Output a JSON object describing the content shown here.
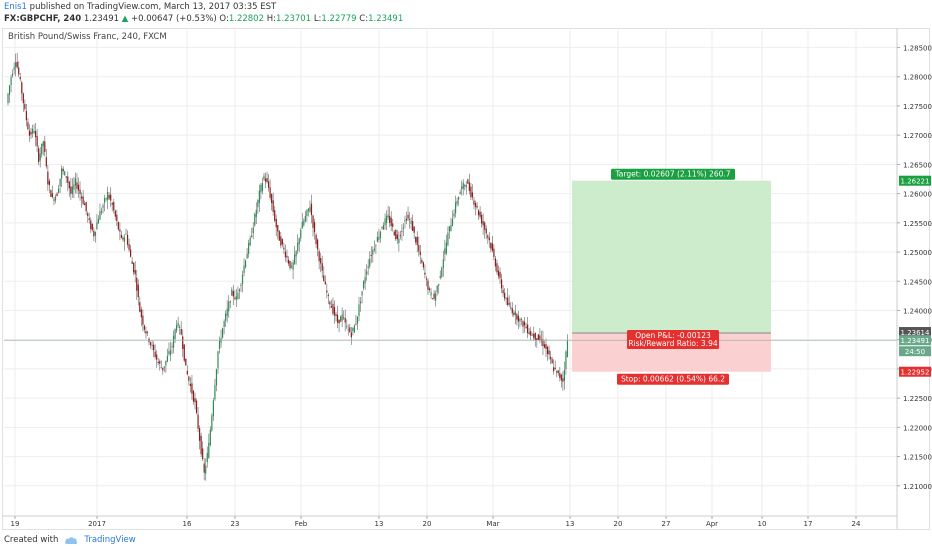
{
  "header": {
    "author": "Enis1",
    "published": "published on TradingView.com, March 13, 2017 03:35 EST",
    "symbol": "FX:GBPCHF, 240",
    "last": "1.23491",
    "change": "+0.00647 (+0.53%)",
    "o_label": "O:",
    "o": "1.22802",
    "h_label": "H:",
    "h": "1.23701",
    "l_label": "L:",
    "l": "1.22779",
    "c_label": "C:",
    "c": "1.23491"
  },
  "subtitle": "British Pound/Swiss Franc, 240, FXCM",
  "footer": {
    "created": "Created with",
    "brand": "TradingView",
    "icon": "tradingview-cloud-icon"
  },
  "colors": {
    "up": "#2e8b57",
    "down": "#8b1a1a",
    "target_fill": "#cdeccb",
    "stop_fill": "#fbd0d0",
    "target_label": "#1aa040",
    "stop_label": "#e53030",
    "grid": "#eeeeee"
  },
  "chart_data": {
    "type": "candlestick",
    "ylim": [
      1.205,
      1.288
    ],
    "y_ticks": [
      "1.28500",
      "1.28000",
      "1.27500",
      "1.27000",
      "1.26500",
      "1.26000",
      "1.25500",
      "1.25000",
      "1.24500",
      "1.24000",
      "1.23500",
      "1.23000",
      "1.22500",
      "1.22000",
      "1.21500",
      "1.21000"
    ],
    "x_ticks": [
      "19",
      "2017",
      "16",
      "23",
      "Feb",
      "13",
      "20",
      "Mar",
      "13",
      "20",
      "27",
      "Apr",
      "10",
      "17",
      "24"
    ],
    "close_series": [
      1.2755,
      1.28,
      1.283,
      1.279,
      1.274,
      1.27,
      1.271,
      1.266,
      1.269,
      1.262,
      1.259,
      1.26,
      1.264,
      1.263,
      1.26,
      1.262,
      1.26,
      1.258,
      1.255,
      1.253,
      1.256,
      1.258,
      1.26,
      1.258,
      1.255,
      1.252,
      1.253,
      1.249,
      1.246,
      1.24,
      1.237,
      1.235,
      1.233,
      1.231,
      1.23,
      1.232,
      1.234,
      1.238,
      1.236,
      1.23,
      1.227,
      1.224,
      1.218,
      1.212,
      1.217,
      1.225,
      1.233,
      1.237,
      1.24,
      1.243,
      1.242,
      1.245,
      1.249,
      1.252,
      1.256,
      1.26,
      1.263,
      1.261,
      1.257,
      1.253,
      1.251,
      1.249,
      1.247,
      1.25,
      1.254,
      1.256,
      1.258,
      1.253,
      1.249,
      1.245,
      1.242,
      1.24,
      1.238,
      1.239,
      1.237,
      1.236,
      1.238,
      1.242,
      1.246,
      1.249,
      1.251,
      1.253,
      1.255,
      1.256,
      1.254,
      1.252,
      1.254,
      1.256,
      1.255,
      1.252,
      1.249,
      1.246,
      1.243,
      1.242,
      1.245,
      1.249,
      1.253,
      1.256,
      1.259,
      1.261,
      1.262,
      1.26,
      1.258,
      1.256,
      1.254,
      1.252,
      1.249,
      1.246,
      1.243,
      1.241,
      1.24,
      1.239,
      1.238,
      1.237,
      1.236,
      1.2355,
      1.235,
      1.234,
      1.232,
      1.23,
      1.229,
      1.228,
      1.2349
    ],
    "current_price": "1.23491",
    "countdown": "24:50",
    "position": {
      "type": "long",
      "entry": 1.23614,
      "target": 1.26221,
      "stop": 1.22952,
      "entry_label": "1.23614",
      "target_price_label": "1.26221",
      "stop_price_label": "1.22952",
      "target_text": "Target: 0.02607 (2.11%) 260.7",
      "stop_text": "Stop: 0.00662 (0.54%) 66.2",
      "pnl_text": "Open P&L: -0.00123",
      "rr_text": "Risk/Reward Ratio: 3.94"
    }
  }
}
